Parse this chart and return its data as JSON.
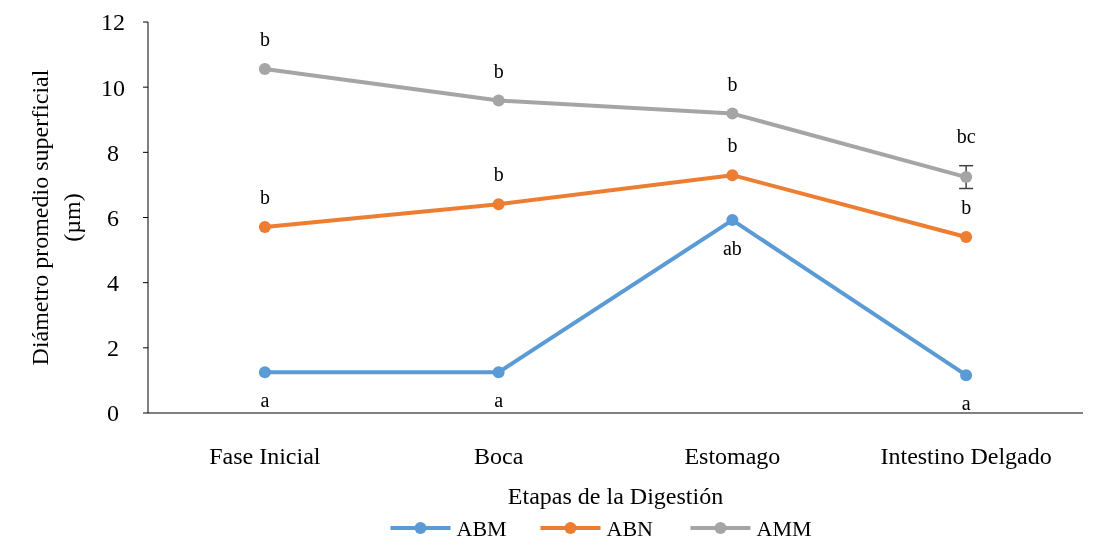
{
  "chart_data": {
    "type": "line",
    "xlabel": "Etapas de la Digestión",
    "ylabel": "Diámetro promedio superficial\n(µm)",
    "categories": [
      "Fase Inicial",
      "Boca",
      "Estomago",
      "Intestino Delgado"
    ],
    "series": [
      {
        "name": "ABM",
        "color": "#5b9bd5",
        "values": [
          1.25,
          1.25,
          5.92,
          1.16
        ]
      },
      {
        "name": "ABN",
        "color": "#ed7d31",
        "values": [
          5.71,
          6.41,
          7.3,
          5.4
        ]
      },
      {
        "name": "AMM",
        "color": "#a5a5a5",
        "values": [
          10.56,
          9.59,
          9.19,
          7.24
        ],
        "errors": [
          null,
          null,
          null,
          0.35
        ]
      }
    ],
    "ylim": [
      0,
      12
    ],
    "yticks": [
      0,
      2,
      4,
      6,
      8,
      10,
      12
    ],
    "grid": false,
    "legend": "bottom",
    "marker": "circle",
    "line_style": "solid",
    "annotations": [
      {
        "text": "a",
        "x": "Fase Inicial",
        "y": 1.25
      },
      {
        "text": "a",
        "x": "Boca",
        "y": 1.25
      },
      {
        "text": "ab",
        "x": "Estomago",
        "y": 5.92
      },
      {
        "text": "a",
        "x": "Intestino Delgado",
        "y": 1.16
      },
      {
        "text": "b",
        "x": "Fase Inicial",
        "y": 5.71
      },
      {
        "text": "b",
        "x": "Boca",
        "y": 6.41
      },
      {
        "text": "b",
        "x": "Estomago",
        "y": 7.3
      },
      {
        "text": "b",
        "x": "Intestino Delgado",
        "y": 5.4
      },
      {
        "text": "b",
        "x": "Fase Inicial",
        "y": 10.56
      },
      {
        "text": "b",
        "x": "Boca",
        "y": 9.59
      },
      {
        "text": "b",
        "x": "Estomago",
        "y": 9.19
      },
      {
        "text": "bc",
        "x": "Intestino Delgado",
        "y": 7.24
      }
    ]
  }
}
